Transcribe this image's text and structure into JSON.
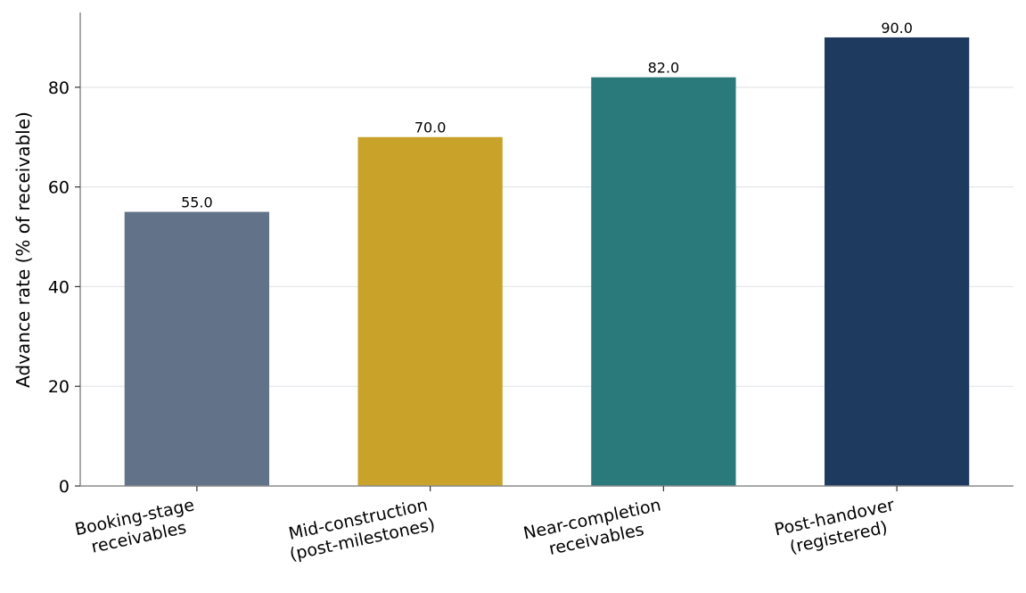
{
  "chart_data": {
    "type": "bar",
    "categories": [
      [
        "Booking-stage",
        "receivables"
      ],
      [
        "Mid-construction",
        "(post-milestones)"
      ],
      [
        "Near-completion",
        "receivables"
      ],
      [
        "Post-handover",
        "(registered)"
      ]
    ],
    "values": [
      55.0,
      70.0,
      82.0,
      90.0
    ],
    "value_labels": [
      "55.0",
      "70.0",
      "82.0",
      "90.0"
    ],
    "colors": [
      "#627389",
      "#c9a229",
      "#2b7a7b",
      "#1f3a5f"
    ],
    "title": "",
    "xlabel": "",
    "ylabel": "Advance rate (% of receivable)",
    "ylim": [
      0,
      95
    ],
    "yticks": [
      0,
      20,
      40,
      60,
      80
    ],
    "grid": "horizontal",
    "legend": "none"
  }
}
